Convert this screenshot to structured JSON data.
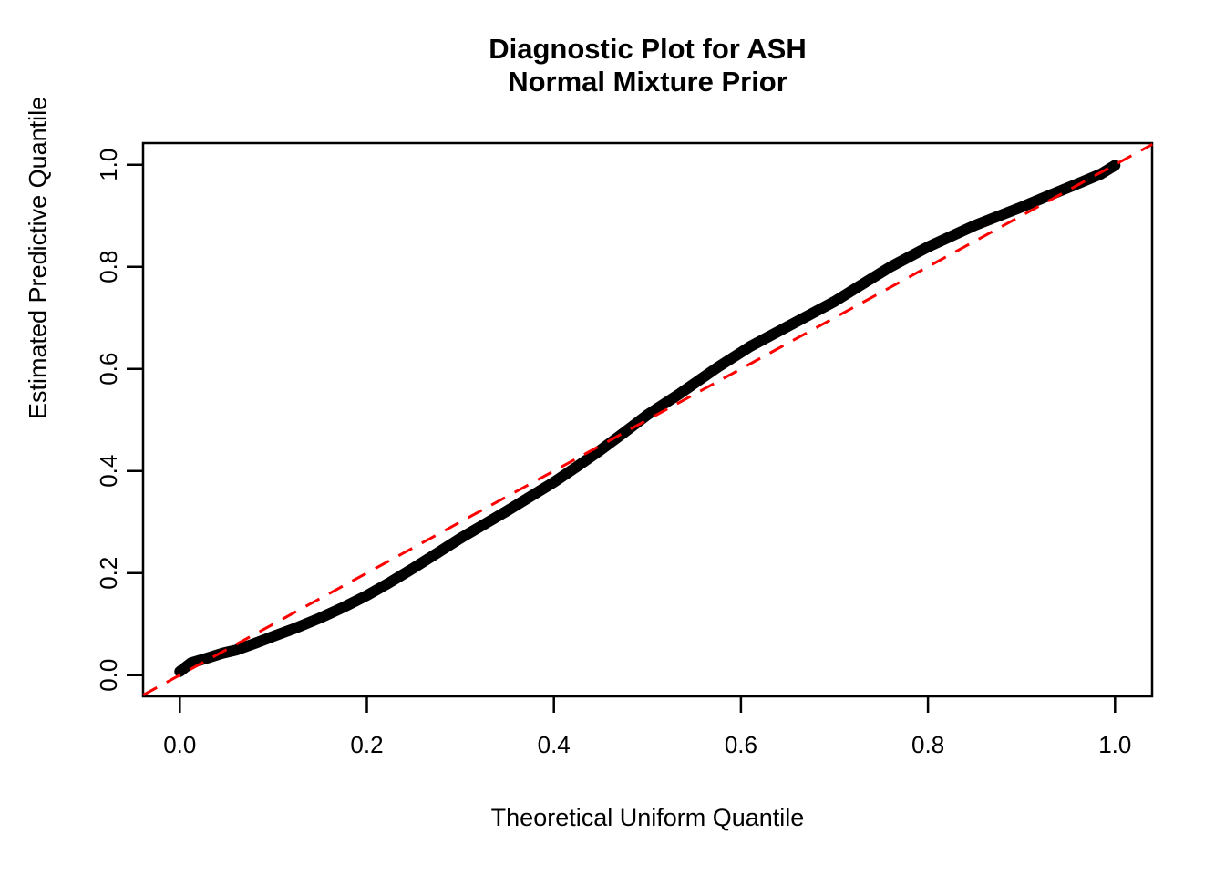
{
  "title": "Diagnostic Plot for ASH\nNormal Mixture Prior",
  "chart_data": {
    "type": "scatter",
    "title": "Diagnostic Plot for ASH Normal Mixture Prior",
    "xlabel": "Theoretical Uniform Quantile",
    "ylabel": "Estimated Predictive Quantile",
    "xlim": [
      -0.04,
      1.04
    ],
    "ylim": [
      -0.04,
      1.04
    ],
    "grid": false,
    "legend": "none",
    "x_ticks": [
      0.0,
      0.2,
      0.4,
      0.6,
      0.8,
      1.0
    ],
    "y_ticks": [
      0.0,
      0.2,
      0.4,
      0.6,
      0.8,
      1.0
    ],
    "x_tick_labels": [
      "0.0",
      "0.2",
      "0.4",
      "0.6",
      "0.8",
      "1.0"
    ],
    "y_tick_labels": [
      "0.0",
      "0.2",
      "0.4",
      "0.6",
      "0.8",
      "1.0"
    ],
    "series": [
      {
        "name": "estimated-predictive-quantiles",
        "style": "thick-point-curve",
        "color": "#000000",
        "points": [
          [
            0.0,
            0.007
          ],
          [
            0.012,
            0.024
          ],
          [
            0.03,
            0.034
          ],
          [
            0.046,
            0.043
          ],
          [
            0.06,
            0.049
          ],
          [
            0.08,
            0.062
          ],
          [
            0.1,
            0.076
          ],
          [
            0.125,
            0.093
          ],
          [
            0.15,
            0.112
          ],
          [
            0.175,
            0.133
          ],
          [
            0.2,
            0.156
          ],
          [
            0.225,
            0.182
          ],
          [
            0.25,
            0.21
          ],
          [
            0.275,
            0.239
          ],
          [
            0.3,
            0.268
          ],
          [
            0.325,
            0.295
          ],
          [
            0.35,
            0.322
          ],
          [
            0.375,
            0.35
          ],
          [
            0.4,
            0.378
          ],
          [
            0.425,
            0.409
          ],
          [
            0.45,
            0.441
          ],
          [
            0.475,
            0.475
          ],
          [
            0.5,
            0.51
          ],
          [
            0.535,
            0.552
          ],
          [
            0.575,
            0.603
          ],
          [
            0.61,
            0.644
          ],
          [
            0.65,
            0.683
          ],
          [
            0.7,
            0.732
          ],
          [
            0.73,
            0.766
          ],
          [
            0.76,
            0.8
          ],
          [
            0.8,
            0.839
          ],
          [
            0.85,
            0.881
          ],
          [
            0.9,
            0.917
          ],
          [
            0.935,
            0.944
          ],
          [
            0.963,
            0.965
          ],
          [
            0.985,
            0.982
          ],
          [
            1.0,
            0.999
          ]
        ]
      },
      {
        "name": "identity-reference-line",
        "style": "dashed-line",
        "color": "#FF0000",
        "points": [
          [
            -0.039,
            -0.039
          ],
          [
            1.04,
            1.04
          ]
        ]
      }
    ],
    "annotations": []
  },
  "colors": {
    "curve": "#000000",
    "reference_line": "#FF0000",
    "axis": "#000000",
    "background": "#FFFFFF"
  }
}
